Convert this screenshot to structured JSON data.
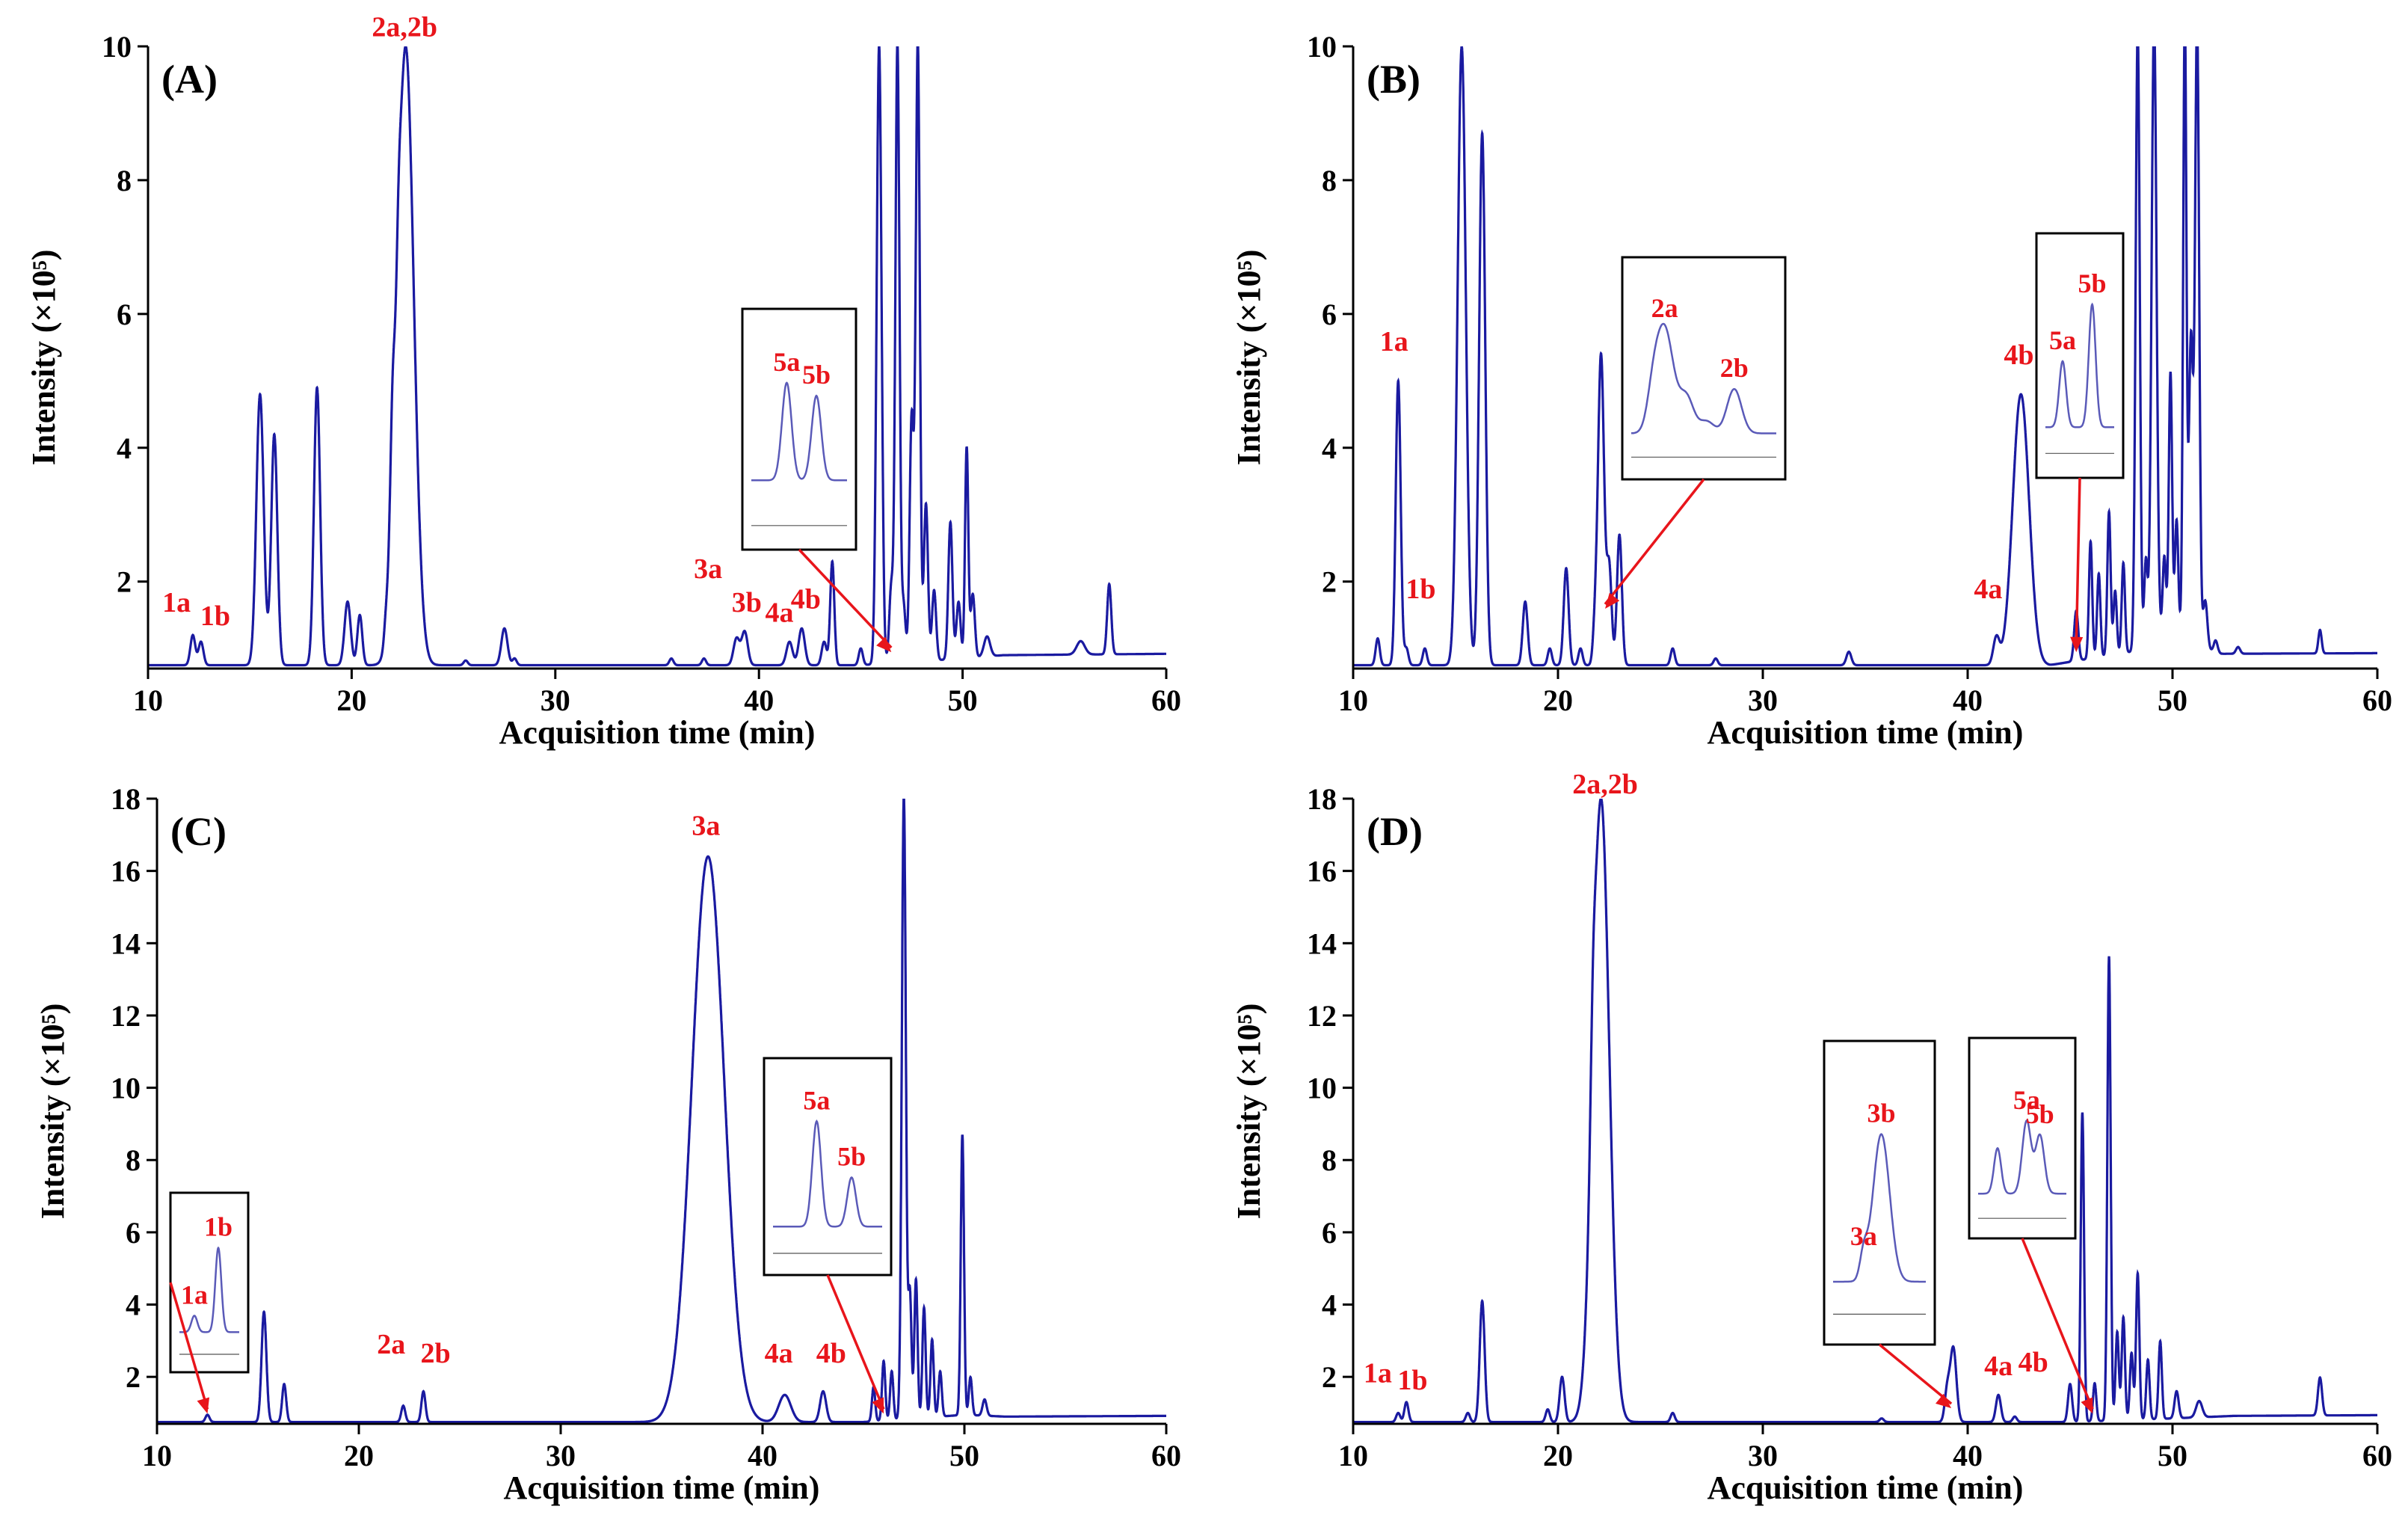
{
  "figure": "GC-MS chromatograms, four panels",
  "colors": {
    "trace": "#1a1aa0",
    "annotation": "#e8151b",
    "inset_trace": "#5a5ab8",
    "axis": "#000000"
  },
  "chart_data": [
    {
      "type": "line",
      "panel": "(A)",
      "xlabel": "Acquisition time (min)",
      "ylabel": "Intensity (×10⁵)",
      "xlim": [
        10,
        60
      ],
      "ylim": [
        0.7,
        10
      ],
      "xticks": [
        10,
        20,
        30,
        40,
        50,
        60
      ],
      "yticks": [
        2,
        4,
        6,
        8,
        10
      ],
      "baseline": 0.75,
      "peaks": [
        [
          12.2,
          1.2,
          0.12
        ],
        [
          12.6,
          1.1,
          0.12
        ],
        [
          15.5,
          4.8,
          0.18
        ],
        [
          16.2,
          4.2,
          0.15
        ],
        [
          18.3,
          4.9,
          0.15
        ],
        [
          19.8,
          1.7,
          0.15
        ],
        [
          20.4,
          1.5,
          0.12
        ],
        [
          21.7,
          1.1,
          0.1
        ],
        [
          22.0,
          2.5,
          0.12
        ],
        [
          22.3,
          1.6,
          0.1
        ],
        [
          22.65,
          10.0,
          0.4
        ],
        [
          25.6,
          0.82,
          0.1
        ],
        [
          27.5,
          1.3,
          0.15
        ],
        [
          28.0,
          0.85,
          0.1
        ],
        [
          35.7,
          0.85,
          0.1
        ],
        [
          37.3,
          0.85,
          0.1
        ],
        [
          38.9,
          1.15,
          0.15
        ],
        [
          39.3,
          1.25,
          0.15
        ],
        [
          41.5,
          1.1,
          0.15
        ],
        [
          42.1,
          1.3,
          0.15
        ],
        [
          43.2,
          1.1,
          0.12
        ],
        [
          43.6,
          2.3,
          0.1
        ],
        [
          45.0,
          1.0,
          0.1
        ],
        [
          45.9,
          10.0,
          0.12
        ],
        [
          46.5,
          1.9,
          0.1
        ],
        [
          46.8,
          10.0,
          0.1
        ],
        [
          47.1,
          1.6,
          0.1
        ],
        [
          47.5,
          4.4,
          0.1
        ],
        [
          47.8,
          10.0,
          0.1
        ],
        [
          48.2,
          3.1,
          0.1
        ],
        [
          48.6,
          1.8,
          0.1
        ],
        [
          49.4,
          2.8,
          0.1
        ],
        [
          49.8,
          1.6,
          0.1
        ],
        [
          50.2,
          3.9,
          0.08
        ],
        [
          50.5,
          1.7,
          0.1
        ],
        [
          51.2,
          1.05,
          0.15
        ],
        [
          55.8,
          0.95,
          0.2
        ],
        [
          57.2,
          1.8,
          0.1
        ]
      ],
      "drift": [
        [
          45,
          0.75
        ],
        [
          50,
          0.85
        ],
        [
          52,
          0.9
        ],
        [
          60,
          0.92
        ]
      ],
      "labels": [
        {
          "text": "1a",
          "x": 11.4,
          "y": 1.55
        },
        {
          "text": "1b",
          "x": 13.3,
          "y": 1.35
        },
        {
          "text": "2a,2b",
          "x": 22.6,
          "y": 10.15
        },
        {
          "text": "3a",
          "x": 37.5,
          "y": 2.05
        },
        {
          "text": "3b",
          "x": 39.4,
          "y": 1.55
        },
        {
          "text": "4a",
          "x": 41.0,
          "y": 1.4
        },
        {
          "text": "4b",
          "x": 42.3,
          "y": 1.6
        }
      ],
      "insets": [
        {
          "labels": [
            "5a",
            "5b"
          ],
          "peaks": [
            [
              0.37,
              0.95,
              0.05
            ],
            [
              0.68,
              0.85,
              0.05
            ]
          ],
          "base": 0.2,
          "arrow_to": [
            46.5,
            0.9
          ]
        }
      ]
    },
    {
      "type": "line",
      "panel": "(B)",
      "xlabel": "Acquisition time (min)",
      "ylabel": "Intensity (×10⁵)",
      "xlim": [
        10,
        60
      ],
      "ylim": [
        0.7,
        10
      ],
      "xticks": [
        10,
        20,
        30,
        40,
        50,
        60
      ],
      "yticks": [
        2,
        4,
        6,
        8,
        10
      ],
      "baseline": 0.75,
      "peaks": [
        [
          11.2,
          1.15,
          0.1
        ],
        [
          12.2,
          5.0,
          0.12
        ],
        [
          12.6,
          1.0,
          0.1
        ],
        [
          13.5,
          1.0,
          0.1
        ],
        [
          15.3,
          10.0,
          0.2
        ],
        [
          16.3,
          8.7,
          0.15
        ],
        [
          18.4,
          1.7,
          0.12
        ],
        [
          19.6,
          1.0,
          0.1
        ],
        [
          20.4,
          2.2,
          0.12
        ],
        [
          21.1,
          1.0,
          0.1
        ],
        [
          21.8,
          1.2,
          0.1
        ],
        [
          22.1,
          5.4,
          0.15
        ],
        [
          22.5,
          2.2,
          0.12
        ],
        [
          23.0,
          2.7,
          0.12
        ],
        [
          25.6,
          1.0,
          0.1
        ],
        [
          27.7,
          0.85,
          0.1
        ],
        [
          34.2,
          0.95,
          0.12
        ],
        [
          41.4,
          1.15,
          0.15
        ],
        [
          42.6,
          4.8,
          0.4
        ],
        [
          45.3,
          1.5,
          0.1
        ],
        [
          46.0,
          2.5,
          0.08
        ],
        [
          46.4,
          2.0,
          0.08
        ],
        [
          46.9,
          2.9,
          0.08
        ],
        [
          47.2,
          1.7,
          0.08
        ],
        [
          47.6,
          2.1,
          0.08
        ],
        [
          48.3,
          10.0,
          0.1
        ],
        [
          48.7,
          2.0,
          0.08
        ],
        [
          49.1,
          10.0,
          0.12
        ],
        [
          49.6,
          1.9,
          0.08
        ],
        [
          49.9,
          4.6,
          0.08
        ],
        [
          50.2,
          2.4,
          0.08
        ],
        [
          50.6,
          10.0,
          0.08
        ],
        [
          50.9,
          5.2,
          0.1
        ],
        [
          51.2,
          10.0,
          0.1
        ],
        [
          51.6,
          1.4,
          0.1
        ],
        [
          52.1,
          0.95,
          0.1
        ],
        [
          53.2,
          0.85,
          0.1
        ],
        [
          57.2,
          1.1,
          0.08
        ]
      ],
      "drift": [
        [
          44,
          0.75
        ],
        [
          48,
          0.95
        ],
        [
          50,
          1.3
        ],
        [
          51.5,
          1.1
        ],
        [
          52,
          0.92
        ],
        [
          60,
          0.93
        ]
      ],
      "labels": [
        {
          "text": "1a",
          "x": 12.0,
          "y": 5.45
        },
        {
          "text": "1b",
          "x": 13.3,
          "y": 1.75
        },
        {
          "text": "4b",
          "x": 42.5,
          "y": 5.25
        },
        {
          "text": "4a",
          "x": 41.0,
          "y": 1.75
        }
      ],
      "insets": [
        {
          "labels": [
            "2a",
            "2b"
          ],
          "peaks": [
            [
              0.15,
              0.3,
              0.04
            ],
            [
              0.23,
              0.92,
              0.06
            ],
            [
              0.38,
              0.35,
              0.05
            ],
            [
              0.52,
              0.15,
              0.05
            ],
            [
              0.71,
              0.42,
              0.05
            ]
          ],
          "base": 0.05,
          "arrow_to": [
            22.3,
            1.55
          ]
        },
        {
          "labels": [
            "5a",
            "5b"
          ],
          "peaks": [
            [
              0.25,
              0.55,
              0.05
            ],
            [
              0.68,
              0.98,
              0.05
            ]
          ],
          "base": 0.05,
          "arrow_to": [
            45.3,
            0.9
          ]
        }
      ]
    },
    {
      "type": "line",
      "panel": "(C)",
      "xlabel": "Acquisition time (min)",
      "ylabel": "Intensity (×10⁵)",
      "xlim": [
        10,
        60
      ],
      "ylim": [
        0.7,
        18
      ],
      "xticks": [
        10,
        20,
        30,
        40,
        50,
        60
      ],
      "yticks": [
        2,
        4,
        6,
        8,
        10,
        12,
        14,
        16,
        18
      ],
      "baseline": 0.75,
      "peaks": [
        [
          12.5,
          0.95,
          0.1
        ],
        [
          15.3,
          3.8,
          0.12
        ],
        [
          16.3,
          1.8,
          0.1
        ],
        [
          22.2,
          1.2,
          0.1
        ],
        [
          23.2,
          1.6,
          0.1
        ],
        [
          37.3,
          16.4,
          0.8
        ],
        [
          41.1,
          1.5,
          0.3
        ],
        [
          43.0,
          1.6,
          0.15
        ],
        [
          45.5,
          1.7,
          0.08
        ],
        [
          46.0,
          2.4,
          0.08
        ],
        [
          46.4,
          2.1,
          0.08
        ],
        [
          47.0,
          18.0,
          0.1
        ],
        [
          47.3,
          4.2,
          0.08
        ],
        [
          47.6,
          4.6,
          0.08
        ],
        [
          48.0,
          3.8,
          0.08
        ],
        [
          48.4,
          2.9,
          0.08
        ],
        [
          48.8,
          2.0,
          0.08
        ],
        [
          49.9,
          8.5,
          0.08
        ],
        [
          50.3,
          1.8,
          0.08
        ],
        [
          51.0,
          1.2,
          0.1
        ]
      ],
      "drift": [
        [
          45,
          0.75
        ],
        [
          50,
          0.95
        ],
        [
          52,
          0.9
        ],
        [
          60,
          0.92
        ]
      ],
      "labels": [
        {
          "text": "3a",
          "x": 37.2,
          "y": 17.0
        },
        {
          "text": "2a",
          "x": 21.6,
          "y": 2.65
        },
        {
          "text": "2b",
          "x": 23.8,
          "y": 2.4
        },
        {
          "text": "4a",
          "x": 40.8,
          "y": 2.4
        },
        {
          "text": "4b",
          "x": 43.4,
          "y": 2.4
        }
      ],
      "insets": [
        {
          "labels": [
            "1a",
            "1b"
          ],
          "peaks": [
            [
              0.25,
              0.25,
              0.05
            ],
            [
              0.65,
              0.95,
              0.05
            ]
          ],
          "base": 0.08,
          "arrow_to": [
            12.5,
            0.9
          ]
        },
        {
          "labels": [
            "5a",
            "5b"
          ],
          "peaks": [
            [
              0.4,
              0.98,
              0.04
            ],
            [
              0.72,
              0.5,
              0.04
            ]
          ],
          "base": 0.08,
          "arrow_to": [
            46.0,
            0.9
          ]
        }
      ]
    },
    {
      "type": "line",
      "panel": "(D)",
      "xlabel": "Acquisition time (min)",
      "ylabel": "Intensity (×10⁵)",
      "xlim": [
        10,
        60
      ],
      "ylim": [
        0.7,
        18
      ],
      "xticks": [
        10,
        20,
        30,
        40,
        50,
        60
      ],
      "yticks": [
        2,
        4,
        6,
        8,
        10,
        12,
        14,
        16,
        18
      ],
      "baseline": 0.75,
      "peaks": [
        [
          12.2,
          1.0,
          0.1
        ],
        [
          12.6,
          1.3,
          0.1
        ],
        [
          15.6,
          1.0,
          0.1
        ],
        [
          16.3,
          4.1,
          0.12
        ],
        [
          19.5,
          1.1,
          0.1
        ],
        [
          20.2,
          2.0,
          0.12
        ],
        [
          21.7,
          2.9,
          0.12
        ],
        [
          22.1,
          18.0,
          0.4
        ],
        [
          25.6,
          1.0,
          0.1
        ],
        [
          35.8,
          0.85,
          0.1
        ],
        [
          39.0,
          1.6,
          0.12
        ],
        [
          39.3,
          2.8,
          0.15
        ],
        [
          41.5,
          1.5,
          0.12
        ],
        [
          42.3,
          0.9,
          0.1
        ],
        [
          45.0,
          1.8,
          0.1
        ],
        [
          45.6,
          9.3,
          0.08
        ],
        [
          46.2,
          1.8,
          0.08
        ],
        [
          46.9,
          13.6,
          0.08
        ],
        [
          47.3,
          3.2,
          0.08
        ],
        [
          47.6,
          3.6,
          0.08
        ],
        [
          48.0,
          2.6,
          0.08
        ],
        [
          48.3,
          4.8,
          0.08
        ],
        [
          48.8,
          2.4,
          0.08
        ],
        [
          49.4,
          2.9,
          0.08
        ],
        [
          50.2,
          1.5,
          0.1
        ],
        [
          51.3,
          1.2,
          0.15
        ],
        [
          57.2,
          1.8,
          0.1
        ]
      ],
      "drift": [
        [
          45,
          0.75
        ],
        [
          50,
          0.85
        ],
        [
          53,
          0.92
        ],
        [
          60,
          0.94
        ]
      ],
      "labels": [
        {
          "text": "2a,2b",
          "x": 22.3,
          "y": 18.15
        },
        {
          "text": "1a",
          "x": 11.2,
          "y": 1.85
        },
        {
          "text": "1b",
          "x": 12.9,
          "y": 1.65
        },
        {
          "text": "4a",
          "x": 41.5,
          "y": 2.05
        },
        {
          "text": "4b",
          "x": 43.2,
          "y": 2.15
        }
      ],
      "insets": [
        {
          "labels": [
            "3a",
            "3b"
          ],
          "peaks": [
            [
              0.33,
              0.2,
              0.04
            ],
            [
              0.52,
              0.95,
              0.09
            ]
          ],
          "base": 0.05,
          "arrow_to": [
            39.2,
            1.05
          ]
        },
        {
          "labels": [
            "5a",
            "5b"
          ],
          "peaks": [
            [
              0.22,
              0.5,
              0.04
            ],
            [
              0.55,
              0.75,
              0.05
            ],
            [
              0.7,
              0.62,
              0.05
            ]
          ],
          "base": 0.08,
          "arrow_to": [
            46.1,
            0.9
          ]
        }
      ]
    }
  ]
}
